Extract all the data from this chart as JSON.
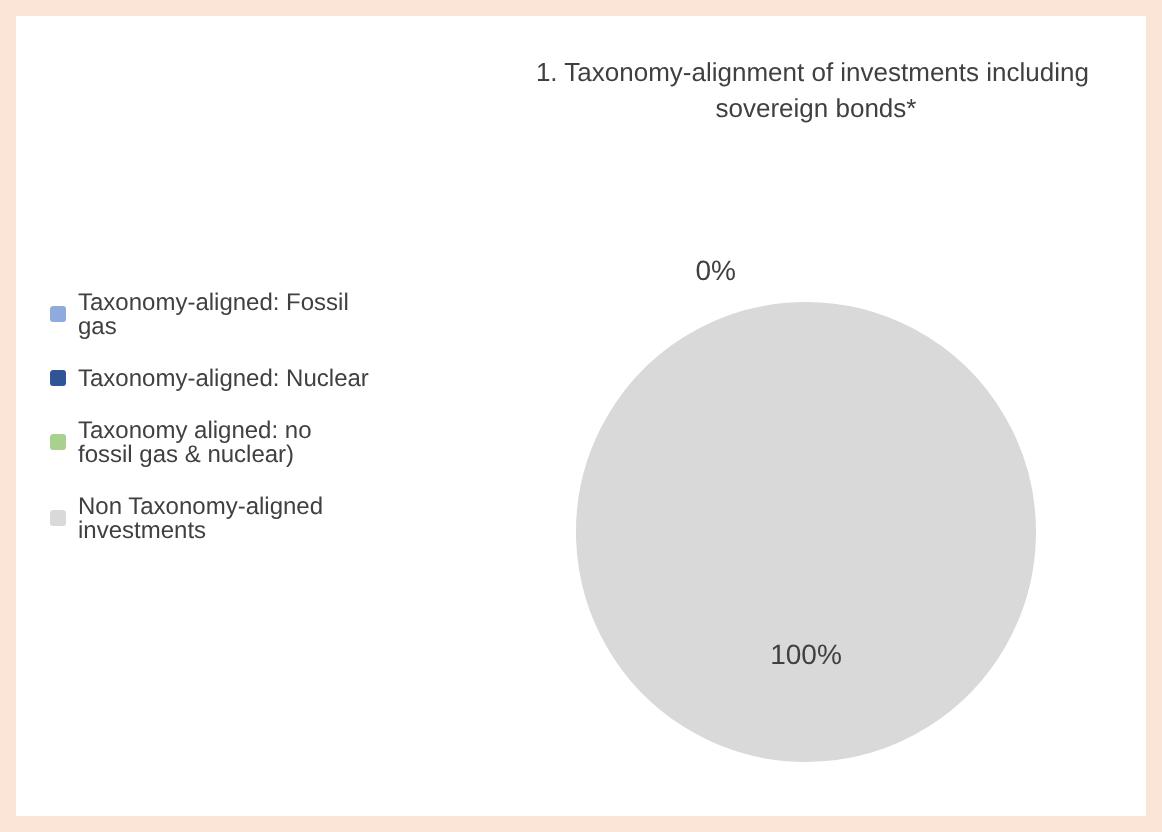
{
  "chart_data": {
    "type": "pie",
    "title": "1. Taxonomy-alignment of investments including sovereign bonds*",
    "categories": [
      "Taxonomy-aligned: Fossil gas",
      "Taxonomy-aligned: Nuclear",
      "Taxonomy aligned: no fossil gas & nuclear)",
      "Non Taxonomy-aligned investments"
    ],
    "values": [
      0,
      0,
      0,
      100
    ],
    "colors": [
      "#8faadc",
      "#2f5597",
      "#a9d18e",
      "#d9d9d9"
    ],
    "value_labels": [
      "0%",
      null,
      null,
      "100%"
    ],
    "legend": "left"
  }
}
